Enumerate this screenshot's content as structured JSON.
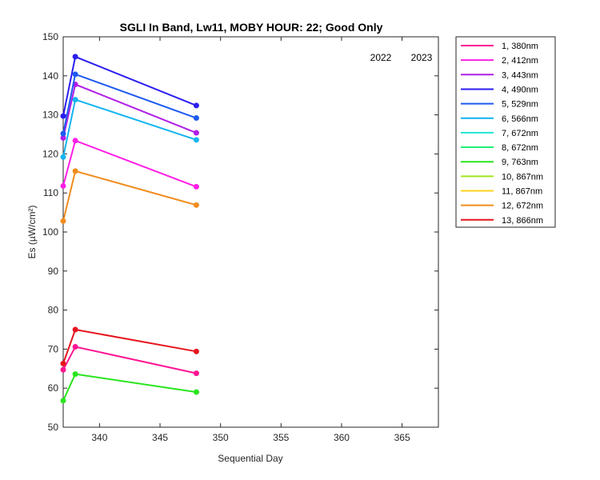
{
  "chart_data": {
    "type": "line",
    "title": "SGLI In Band,  Lw11, MOBY HOUR: 22;  Good Only",
    "xlabel": "Sequential Day",
    "ylabel": "Es (µW/cm²)",
    "xlim": [
      337,
      368
    ],
    "ylim": [
      50,
      150
    ],
    "xticks": [
      340,
      345,
      350,
      355,
      360,
      365
    ],
    "yticks": [
      50,
      60,
      70,
      80,
      90,
      100,
      110,
      120,
      130,
      140,
      150
    ],
    "grid": false,
    "legend_position": "outside-right",
    "year_labels": [
      "2022",
      "2023"
    ],
    "x": [
      337,
      338,
      348
    ],
    "series": [
      {
        "name": "1, 380nm",
        "color": "#ff1493",
        "values": [
          64.7,
          70.6,
          63.8
        ]
      },
      {
        "name": "2, 412nm",
        "color": "#ff1ee6",
        "values": [
          111.8,
          123.4,
          111.6
        ]
      },
      {
        "name": "3, 443nm",
        "color": "#b01ee8",
        "values": [
          124.1,
          137.8,
          125.4
        ]
      },
      {
        "name": "4, 490nm",
        "color": "#2b1ef0",
        "values": [
          129.7,
          144.9,
          132.4
        ]
      },
      {
        "name": "5, 529nm",
        "color": "#1e5af0",
        "values": [
          125.2,
          140.4,
          129.2
        ]
      },
      {
        "name": "6, 566nm",
        "color": "#14b4f0",
        "values": [
          119.2,
          133.9,
          123.6
        ]
      },
      {
        "name": "7, 672nm",
        "color": "#1ee6d2",
        "values": [
          null,
          null,
          null
        ]
      },
      {
        "name": "8, 672nm",
        "color": "#1ef078",
        "values": [
          null,
          null,
          null
        ]
      },
      {
        "name": "9, 763nm",
        "color": "#28e61e",
        "values": [
          56.8,
          63.6,
          59.0
        ]
      },
      {
        "name": "10, 867nm",
        "color": "#a0e61e",
        "values": [
          null,
          null,
          null
        ]
      },
      {
        "name": "11, 867nm",
        "color": "#ffd21e",
        "values": [
          null,
          null,
          null
        ]
      },
      {
        "name": "12, 672nm",
        "color": "#f08c1e",
        "values": [
          102.8,
          115.6,
          106.9
        ]
      },
      {
        "name": "13, 866nm",
        "color": "#e6141e",
        "values": [
          66.3,
          75.0,
          69.4
        ]
      }
    ]
  }
}
